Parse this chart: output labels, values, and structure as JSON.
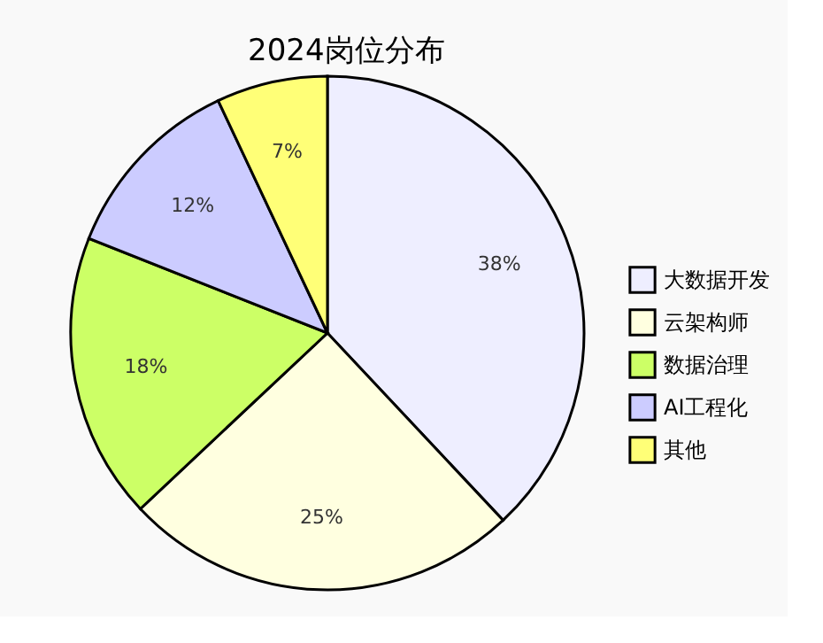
{
  "chart_data": {
    "type": "pie",
    "title": "2024岗位分布",
    "categories": [
      "大数据开发",
      "云架构师",
      "数据治理",
      "AI工程化",
      "其他"
    ],
    "values": [
      38,
      25,
      18,
      12,
      7
    ],
    "colors": [
      "#eeeeff",
      "#ffffe0",
      "#ccff66",
      "#ccccff",
      "#ffff77"
    ],
    "value_labels": [
      "38%",
      "25%",
      "18%",
      "12%",
      "7%"
    ],
    "legend": "right"
  }
}
